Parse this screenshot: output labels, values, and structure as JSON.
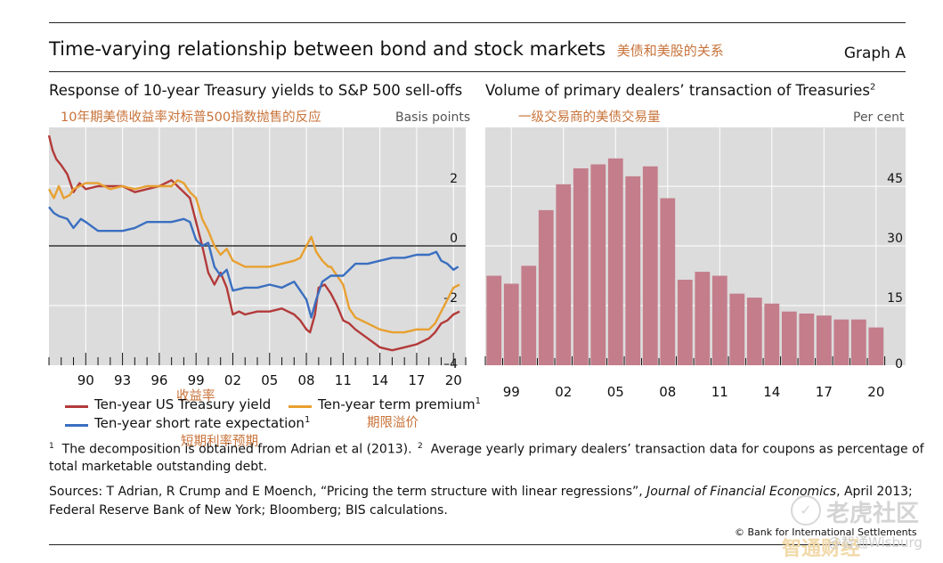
{
  "header": {
    "title": "Time-varying relationship between bond and stock markets",
    "title_cn": "美债和美股的关系",
    "graph_label": "Graph A"
  },
  "left_panel": {
    "title": "Response of 10-year Treasury yields to S&P 500 sell-offs",
    "title_cn": "10年期美债收益率对标普500指数抛售的反应",
    "unit": "Basis points",
    "annot_cn_yield": "收益率",
    "annot_cn_premium": "期限溢价",
    "annot_cn_short": "短期利率预期"
  },
  "right_panel": {
    "title": "Volume of primary dealers’ transaction of Treasuries",
    "title_sup": "2",
    "title_cn": "一级交易商的美债交易量",
    "unit": "Per cent"
  },
  "legend": {
    "items": [
      {
        "label": "Ten-year US Treasury yield",
        "color": "#b33a3a",
        "sup": ""
      },
      {
        "label": "Ten-year term premium",
        "color": "#e8a030",
        "sup": "1"
      },
      {
        "label": "Ten-year short rate expectation",
        "color": "#3a6fc0",
        "sup": "1"
      }
    ]
  },
  "footnotes": {
    "f1_num": "1",
    "f1_text": "The decomposition is obtained from Adrian et al (2013).",
    "f2_num": "2",
    "f2_text_a": "Average yearly primary dealers’ transaction data for coupons as percentage of",
    "f2_text_b": "total marketable outstanding debt."
  },
  "sources": {
    "line1_a": "Sources: T Adrian, R Crump and E Moench, “Pricing the term structure with linear regressions”, ",
    "line1_journal": "Journal of Financial Economics",
    "line1_b": ", April 2013;",
    "line2": "Federal Reserve Bank of New York; Bloomberg; BIS calculations."
  },
  "copyright": "© Bank for International Settlements",
  "watermark": {
    "text": "老虎社区",
    "handle": "@智通Wisburg",
    "cn2": "智通财经"
  },
  "colors": {
    "yield": "#b33a3a",
    "premium": "#e8a030",
    "short": "#3a6fc0",
    "bar": "#c47d8b",
    "panel_bg": "#dcdcdc",
    "cn_text": "#c8733a"
  },
  "chart_data": [
    {
      "type": "line",
      "title": "Response of 10-year Treasury yields to S&P 500 sell-offs",
      "ylabel": "Basis points",
      "xlim": [
        1987,
        2021
      ],
      "ylim": [
        -4,
        4
      ],
      "yticks": [
        2,
        0,
        -2,
        -4
      ],
      "ytick_labels": [
        "2",
        "0",
        "–2",
        "–4"
      ],
      "xticks": [
        1990,
        1993,
        1996,
        1999,
        2002,
        2005,
        2008,
        2011,
        2014,
        2017,
        2020
      ],
      "xtick_labels": [
        "90",
        "93",
        "96",
        "99",
        "02",
        "05",
        "08",
        "11",
        "14",
        "17",
        "20"
      ],
      "series": [
        {
          "name": "Ten-year US Treasury yield",
          "color": "#b33a3a",
          "x": [
            1987.0,
            1987.3,
            1987.6,
            1988.0,
            1988.5,
            1989.0,
            1989.5,
            1990.0,
            1991.0,
            1992.0,
            1993.0,
            1994.0,
            1995.0,
            1996.0,
            1997.0,
            1997.5,
            1998.0,
            1998.5,
            1999.0,
            1999.5,
            2000.0,
            2000.5,
            2001.0,
            2001.5,
            2002.0,
            2002.5,
            2003.0,
            2004.0,
            2005.0,
            2006.0,
            2006.5,
            2007.0,
            2007.5,
            2008.0,
            2008.3,
            2008.7,
            2009.0,
            2009.5,
            2010.0,
            2010.5,
            2011.0,
            2011.5,
            2012.0,
            2013.0,
            2014.0,
            2015.0,
            2016.0,
            2017.0,
            2018.0,
            2018.5,
            2019.0,
            2019.5,
            2020.0,
            2020.5
          ],
          "values": [
            3.7,
            3.2,
            2.9,
            2.7,
            2.4,
            1.8,
            2.1,
            1.9,
            2.0,
            2.0,
            2.0,
            1.8,
            1.9,
            2.0,
            2.2,
            2.0,
            1.8,
            1.6,
            0.8,
            0.0,
            -0.9,
            -1.3,
            -0.9,
            -1.4,
            -2.3,
            -2.2,
            -2.3,
            -2.2,
            -2.2,
            -2.1,
            -2.2,
            -2.3,
            -2.5,
            -2.8,
            -2.9,
            -2.3,
            -1.4,
            -1.3,
            -1.6,
            -2.0,
            -2.5,
            -2.6,
            -2.8,
            -3.1,
            -3.4,
            -3.5,
            -3.4,
            -3.3,
            -3.1,
            -2.9,
            -2.6,
            -2.5,
            -2.3,
            -2.2
          ]
        },
        {
          "name": "Ten-year term premium",
          "color": "#e8a030",
          "x": [
            1987.0,
            1987.4,
            1987.8,
            1988.2,
            1988.7,
            1989.0,
            1990.0,
            1991.0,
            1992.0,
            1993.0,
            1994.0,
            1995.0,
            1996.0,
            1997.0,
            1997.5,
            1998.0,
            1998.5,
            1999.0,
            1999.5,
            2000.0,
            2000.5,
            2001.0,
            2001.5,
            2002.0,
            2003.0,
            2004.0,
            2005.0,
            2006.0,
            2007.0,
            2007.5,
            2008.0,
            2008.4,
            2008.8,
            2009.3,
            2009.8,
            2010.0,
            2010.5,
            2011.0,
            2011.5,
            2012.0,
            2013.0,
            2014.0,
            2015.0,
            2016.0,
            2017.0,
            2018.0,
            2018.5,
            2019.0,
            2019.5,
            2020.0,
            2020.5
          ],
          "values": [
            1.9,
            1.6,
            2.0,
            1.6,
            1.7,
            1.9,
            2.1,
            2.1,
            1.9,
            2.0,
            1.9,
            2.0,
            2.0,
            2.0,
            2.2,
            2.1,
            1.8,
            1.6,
            0.9,
            0.5,
            0.0,
            -0.3,
            -0.1,
            -0.5,
            -0.7,
            -0.7,
            -0.7,
            -0.6,
            -0.5,
            -0.4,
            0.0,
            0.3,
            -0.2,
            -0.5,
            -0.7,
            -0.7,
            -1.0,
            -1.3,
            -2.1,
            -2.4,
            -2.6,
            -2.8,
            -2.9,
            -2.9,
            -2.8,
            -2.8,
            -2.6,
            -2.2,
            -1.8,
            -1.4,
            -1.3
          ]
        },
        {
          "name": "Ten-year short rate expectation",
          "color": "#3a6fc0",
          "x": [
            1987.0,
            1987.4,
            1987.8,
            1988.5,
            1989.0,
            1989.6,
            1990.0,
            1991.0,
            1992.0,
            1993.0,
            1994.0,
            1995.0,
            1996.0,
            1997.0,
            1998.0,
            1998.5,
            1999.0,
            1999.5,
            2000.0,
            2000.5,
            2001.0,
            2001.5,
            2002.0,
            2003.0,
            2004.0,
            2005.0,
            2006.0,
            2006.5,
            2007.0,
            2007.5,
            2008.0,
            2008.4,
            2008.8,
            2009.3,
            2010.0,
            2011.0,
            2012.0,
            2013.0,
            2014.0,
            2015.0,
            2016.0,
            2017.0,
            2018.0,
            2018.6,
            2019.0,
            2019.5,
            2020.0,
            2020.4
          ],
          "values": [
            1.3,
            1.1,
            1.0,
            0.9,
            0.6,
            0.9,
            0.8,
            0.5,
            0.5,
            0.5,
            0.6,
            0.8,
            0.8,
            0.8,
            0.9,
            0.8,
            0.2,
            0.0,
            0.1,
            -0.7,
            -1.0,
            -0.8,
            -1.5,
            -1.4,
            -1.4,
            -1.3,
            -1.4,
            -1.3,
            -1.2,
            -1.5,
            -1.8,
            -2.4,
            -1.8,
            -1.2,
            -1.0,
            -1.0,
            -0.6,
            -0.6,
            -0.5,
            -0.4,
            -0.4,
            -0.3,
            -0.3,
            -0.2,
            -0.5,
            -0.6,
            -0.8,
            -0.7
          ]
        }
      ]
    },
    {
      "type": "bar",
      "title": "Volume of primary dealers’ transaction of Treasuries",
      "ylabel": "Per cent",
      "ylim": [
        0,
        60
      ],
      "yticks": [
        45,
        30,
        15,
        0
      ],
      "xticks": [
        1999,
        2002,
        2005,
        2008,
        2011,
        2014,
        2017,
        2020
      ],
      "xtick_labels": [
        "99",
        "02",
        "05",
        "08",
        "11",
        "14",
        "17",
        "20"
      ],
      "categories": [
        1998,
        1999,
        2000,
        2001,
        2002,
        2003,
        2004,
        2005,
        2006,
        2007,
        2008,
        2009,
        2010,
        2011,
        2012,
        2013,
        2014,
        2015,
        2016,
        2017,
        2018,
        2019,
        2020
      ],
      "values": [
        22.5,
        20.5,
        25.0,
        39.0,
        45.5,
        49.5,
        50.5,
        52.0,
        47.5,
        50.0,
        42.0,
        21.5,
        23.5,
        22.5,
        18.0,
        17.0,
        15.5,
        13.5,
        13.0,
        12.5,
        11.5,
        11.5,
        9.5
      ]
    }
  ]
}
